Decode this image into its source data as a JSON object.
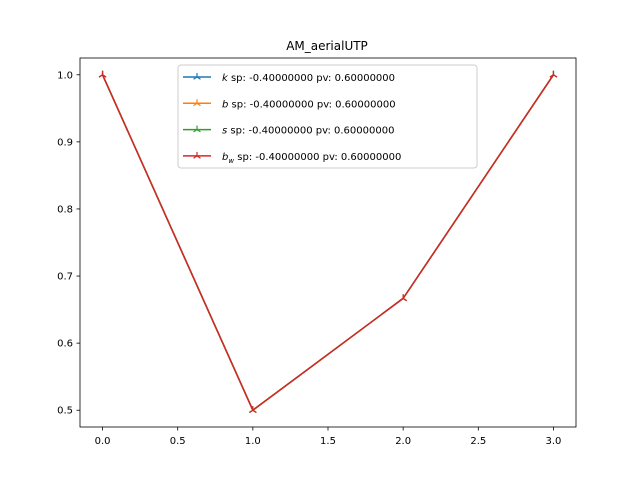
{
  "chart_data": {
    "type": "line",
    "title": "AM_aerialUTP",
    "xlabel": "",
    "ylabel": "",
    "x": [
      0,
      1,
      2,
      3
    ],
    "xlim": [
      -0.15,
      3.15
    ],
    "ylim": [
      0.475,
      1.025
    ],
    "xticks": [
      "0.0",
      "0.5",
      "1.0",
      "1.5",
      "2.0",
      "2.5",
      "3.0"
    ],
    "yticks": [
      "0.5",
      "0.6",
      "0.7",
      "0.8",
      "0.9",
      "1.0"
    ],
    "grid": false,
    "legend_position": "top-center",
    "series": [
      {
        "name_symbol": "k",
        "name_sub": "",
        "name_rest": " sp: -0.40000000 pv: 0.60000000",
        "color": "#1f77b4",
        "values": [
          1.0,
          0.5,
          0.6667,
          1.0
        ]
      },
      {
        "name_symbol": "b",
        "name_sub": "",
        "name_rest": " sp: -0.40000000 pv: 0.60000000",
        "color": "#ff7f0e",
        "values": [
          1.0,
          0.5,
          0.6667,
          1.0
        ]
      },
      {
        "name_symbol": "s",
        "name_sub": "",
        "name_rest": " sp: -0.40000000 pv: 0.60000000",
        "color": "#2ca02c",
        "values": [
          1.0,
          0.5,
          0.6667,
          1.0
        ]
      },
      {
        "name_symbol": "b",
        "name_sub": "w",
        "name_rest": " sp: -0.40000000 pv: 0.60000000",
        "color": "#d62728",
        "values": [
          1.0,
          0.5,
          0.6667,
          1.0
        ]
      }
    ]
  }
}
